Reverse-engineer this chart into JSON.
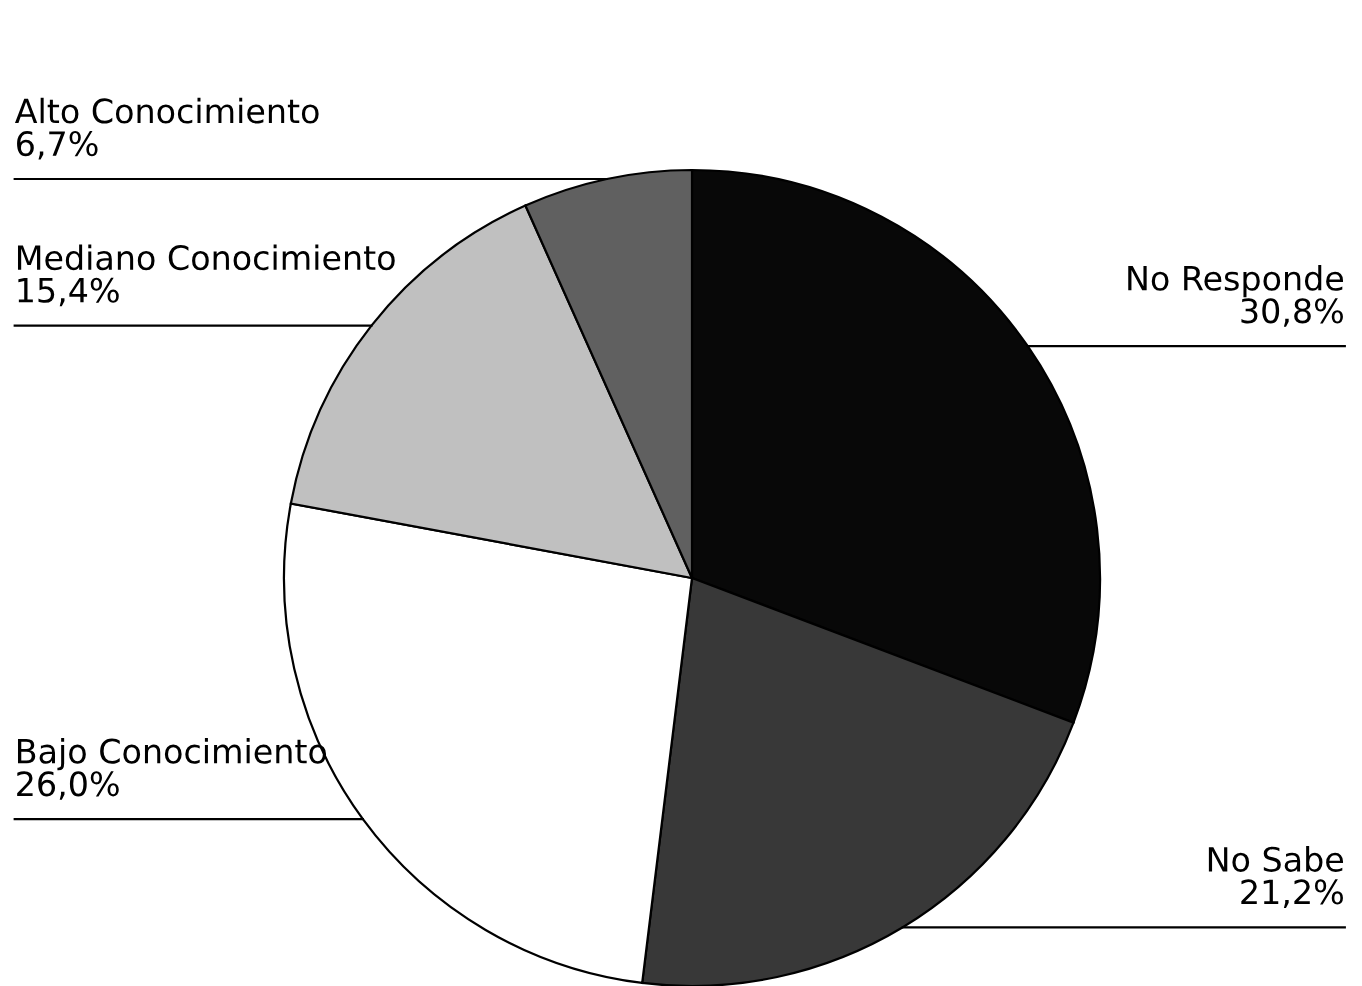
{
  "chart_data": {
    "type": "pie",
    "categories": [
      "No Responde",
      "No Sabe",
      "Bajo Conocimiento",
      "Mediano Conocimiento",
      "Alto Conocimiento"
    ],
    "values": [
      30.8,
      21.2,
      26.0,
      15.4,
      6.7
    ],
    "value_labels": [
      "30,8%",
      "21,2%",
      "26,0%",
      "15,4%",
      "6,7%"
    ],
    "colors": [
      "#080808",
      "#383838",
      "#ffffff",
      "#c0c0c0",
      "#606060"
    ],
    "legend": false
  }
}
